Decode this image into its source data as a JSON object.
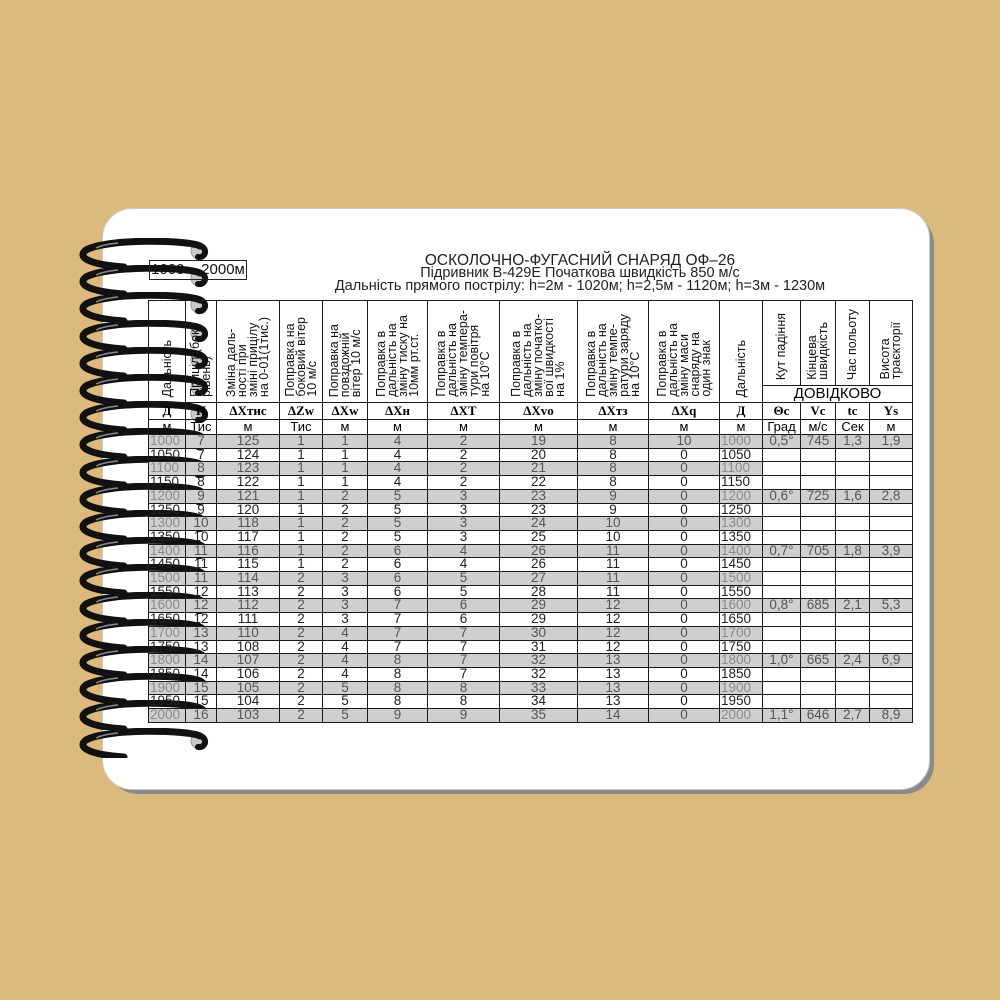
{
  "range_label": "1000 – 2000м",
  "title": "ОСКОЛОЧНО-ФУГАСНИЙ СНАРЯД ОФ–26",
  "subtitle": "Підривник В-429Е Початкова швидкість 850 м/с",
  "direct_fire": "Дальність прямого пострілу: h=2м - 1020м; h=2,5м - 1120м; h=3м - 1230м",
  "reference_label": "ДОВІДКОВО",
  "columns": [
    {
      "header": "Дальність",
      "symbol": "Д",
      "unit": "м"
    },
    {
      "header": "Приціл (бок.\nрівень)",
      "symbol": "П",
      "unit": "Тис"
    },
    {
      "header": "Зміна даль-\nності при\nзміні прицілу\nна 0-01(1тис.)",
      "symbol": "ΔXтис",
      "unit": "м"
    },
    {
      "header": "Поправка на\nбоковий вітер\n10 м/с",
      "symbol": "ΔZw",
      "unit": "Тис"
    },
    {
      "header": "Поправка на\nповздожній\nвітер 10 м/с",
      "symbol": "ΔXw",
      "unit": "м"
    },
    {
      "header": "Поправка в\nдальність на\nзміну тиску на\n10мм рт.ст.",
      "symbol": "ΔXн",
      "unit": "м"
    },
    {
      "header": "Поправка в\nдальність на\nзміну темпера-\nтури повітря\nна 10°С",
      "symbol": "ΔXT",
      "unit": "м"
    },
    {
      "header": "Поправка в\nдальність на\nзміну початко-\nвої швидкості\nна 1%",
      "symbol": "ΔXvo",
      "unit": "м"
    },
    {
      "header": "Поправка в\nдальність на\nзміну темпе-\nратури заряду\nна 10°С",
      "symbol": "ΔXтз",
      "unit": "м"
    },
    {
      "header": "Поправка в\nдальність на\nзміну маси\nснаряду на\nодин знак",
      "symbol": "ΔXq",
      "unit": "м"
    },
    {
      "header": "Дальність",
      "symbol": "Д",
      "unit": "м"
    },
    {
      "header": "Кут падіння",
      "symbol": "Θc",
      "unit": "Град"
    },
    {
      "header": "Кінцева\nшвидкість",
      "symbol": "Vc",
      "unit": "м/с"
    },
    {
      "header": "Час польоту",
      "symbol": "tc",
      "unit": "Сек"
    },
    {
      "header": "Висота\nтраєкторії",
      "symbol": "Ys",
      "unit": "м"
    }
  ],
  "rows": [
    [
      "1000",
      "7",
      "125",
      "1",
      "1",
      "4",
      "2",
      "19",
      "8",
      "10",
      "1000",
      "0,5°",
      "745",
      "1,3",
      "1,9"
    ],
    [
      "1050",
      "7",
      "124",
      "1",
      "1",
      "4",
      "2",
      "20",
      "8",
      "0",
      "1050",
      "",
      "",
      "",
      ""
    ],
    [
      "1100",
      "8",
      "123",
      "1",
      "1",
      "4",
      "2",
      "21",
      "8",
      "0",
      "1100",
      "",
      "",
      "",
      ""
    ],
    [
      "1150",
      "8",
      "122",
      "1",
      "1",
      "4",
      "2",
      "22",
      "8",
      "0",
      "1150",
      "",
      "",
      "",
      ""
    ],
    [
      "1200",
      "9",
      "121",
      "1",
      "2",
      "5",
      "3",
      "23",
      "9",
      "0",
      "1200",
      "0,6°",
      "725",
      "1,6",
      "2,8"
    ],
    [
      "1250",
      "9",
      "120",
      "1",
      "2",
      "5",
      "3",
      "23",
      "9",
      "0",
      "1250",
      "",
      "",
      "",
      ""
    ],
    [
      "1300",
      "10",
      "118",
      "1",
      "2",
      "5",
      "3",
      "24",
      "10",
      "0",
      "1300",
      "",
      "",
      "",
      ""
    ],
    [
      "1350",
      "10",
      "117",
      "1",
      "2",
      "5",
      "3",
      "25",
      "10",
      "0",
      "1350",
      "",
      "",
      "",
      ""
    ],
    [
      "1400",
      "11",
      "116",
      "1",
      "2",
      "6",
      "4",
      "26",
      "11",
      "0",
      "1400",
      "0,7°",
      "705",
      "1,8",
      "3,9"
    ],
    [
      "1450",
      "11",
      "115",
      "1",
      "2",
      "6",
      "4",
      "26",
      "11",
      "0",
      "1450",
      "",
      "",
      "",
      ""
    ],
    [
      "1500",
      "11",
      "114",
      "2",
      "3",
      "6",
      "5",
      "27",
      "11",
      "0",
      "1500",
      "",
      "",
      "",
      ""
    ],
    [
      "1550",
      "12",
      "113",
      "2",
      "3",
      "6",
      "5",
      "28",
      "11",
      "0",
      "1550",
      "",
      "",
      "",
      ""
    ],
    [
      "1600",
      "12",
      "112",
      "2",
      "3",
      "7",
      "6",
      "29",
      "12",
      "0",
      "1600",
      "0,8°",
      "685",
      "2,1",
      "5,3"
    ],
    [
      "1650",
      "12",
      "111",
      "2",
      "3",
      "7",
      "6",
      "29",
      "12",
      "0",
      "1650",
      "",
      "",
      "",
      ""
    ],
    [
      "1700",
      "13",
      "110",
      "2",
      "4",
      "7",
      "7",
      "30",
      "12",
      "0",
      "1700",
      "",
      "",
      "",
      ""
    ],
    [
      "1750",
      "13",
      "108",
      "2",
      "4",
      "7",
      "7",
      "31",
      "12",
      "0",
      "1750",
      "",
      "",
      "",
      ""
    ],
    [
      "1800",
      "14",
      "107",
      "2",
      "4",
      "8",
      "7",
      "32",
      "13",
      "0",
      "1800",
      "1,0°",
      "665",
      "2,4",
      "6,9"
    ],
    [
      "1850",
      "14",
      "106",
      "2",
      "4",
      "8",
      "7",
      "32",
      "13",
      "0",
      "1850",
      "",
      "",
      "",
      ""
    ],
    [
      "1900",
      "15",
      "105",
      "2",
      "5",
      "8",
      "8",
      "33",
      "13",
      "0",
      "1900",
      "",
      "",
      "",
      ""
    ],
    [
      "1950",
      "15",
      "104",
      "2",
      "5",
      "8",
      "8",
      "34",
      "13",
      "0",
      "1950",
      "",
      "",
      "",
      ""
    ],
    [
      "2000",
      "16",
      "103",
      "2",
      "5",
      "9",
      "9",
      "35",
      "14",
      "0",
      "2000",
      "1,1°",
      "646",
      "2,7",
      "8,9"
    ]
  ],
  "colors": {
    "background": "#dcb97d",
    "row_shade": "#cfcfcf",
    "binding": "#111111"
  }
}
